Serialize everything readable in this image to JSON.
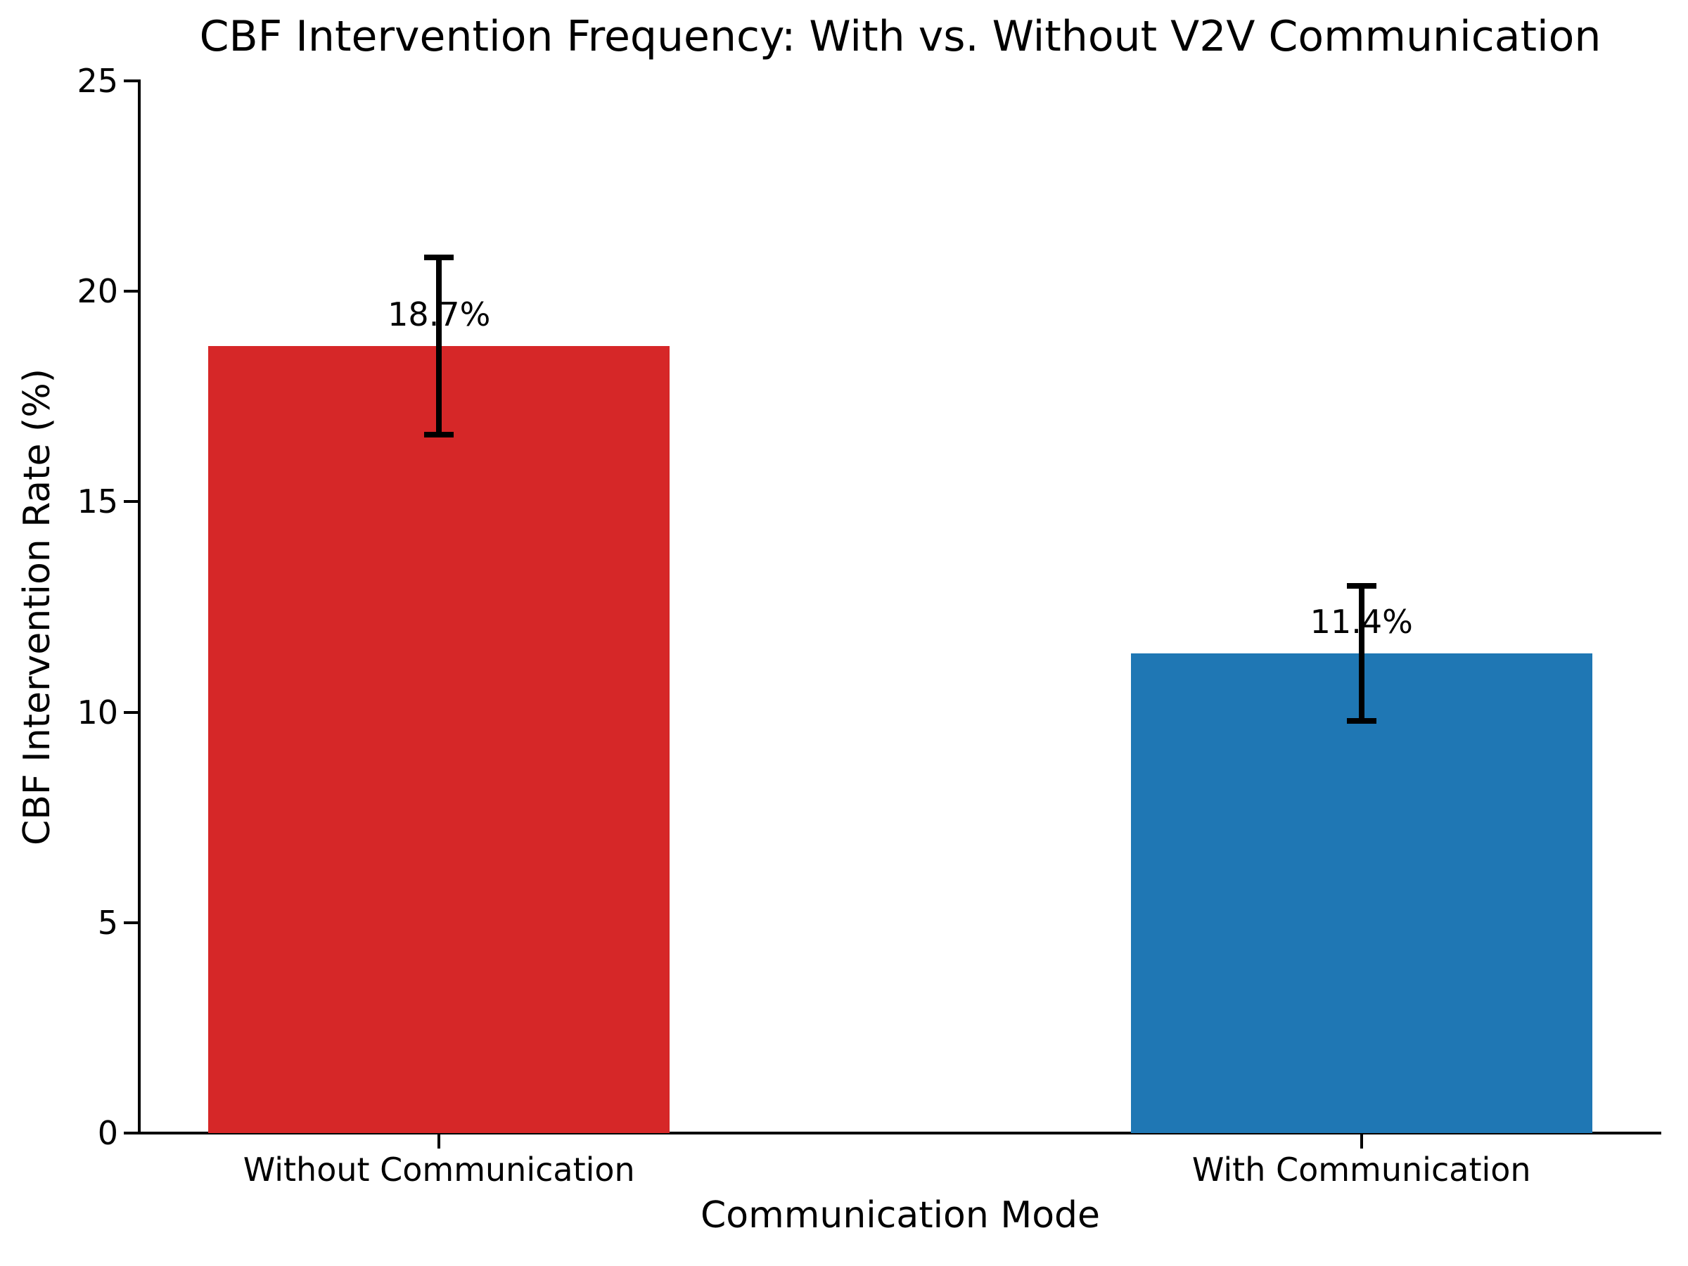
{
  "chart_data": {
    "type": "bar",
    "title": "CBF Intervention Frequency: With vs. Without V2V Communication",
    "xlabel": "Communication Mode",
    "ylabel": "CBF Intervention Rate (%)",
    "categories": [
      "Without Communication",
      "With Communication"
    ],
    "values": [
      18.7,
      11.4
    ],
    "errors": [
      2.1,
      1.6
    ],
    "value_labels": [
      "18.7%",
      "11.4%"
    ],
    "bar_colors": [
      "#d62728",
      "#1f77b4"
    ],
    "ylim": [
      0,
      25
    ],
    "yticks": [
      0,
      5,
      10,
      15,
      20,
      25
    ],
    "grid": false,
    "legend": "none",
    "axis_color": "#000000",
    "background_color": "#ffffff"
  }
}
